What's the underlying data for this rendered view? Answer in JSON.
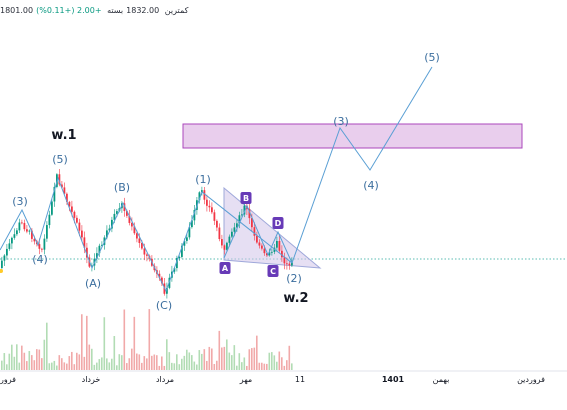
{
  "header": {
    "items": [
      {
        "label": "کمترین",
        "value": "1801.00"
      },
      {
        "label": "بسته",
        "value": "1832.00"
      }
    ],
    "change": "+2.00 (+0.11%)"
  },
  "colors": {
    "up": "#089981",
    "down": "#f23645",
    "wave": "#5a9fd4",
    "label": "#3b6e9e",
    "abc_badge": "#673ab7",
    "zone_fill": "#e1bee7",
    "zone_stroke": "#ab47bc",
    "triangle_fill": "#d1c4e9",
    "triangle_stroke": "#9fa8da",
    "volume": "#ef9a9a",
    "volume_up": "#a5d6a7",
    "dotted": "#26a69a",
    "marker": "#ffca28"
  },
  "chart_data": {
    "type": "candlestick",
    "time_axis_labels": [
      "فرور",
      "خرداد",
      "مرداد",
      "مهر",
      "11",
      "1401",
      "بهمن",
      "فروردین"
    ],
    "wave_labels": [
      "(3)",
      "(4)",
      "(5)",
      "(A)",
      "(B)",
      "(C)",
      "(1)",
      "(2)",
      "(3)",
      "(4)",
      "(5)"
    ],
    "abcd_badges": [
      "A",
      "B",
      "C",
      "D"
    ],
    "degree_labels": [
      "w.1",
      "w.2"
    ],
    "grid": false,
    "volume_panel": true
  }
}
